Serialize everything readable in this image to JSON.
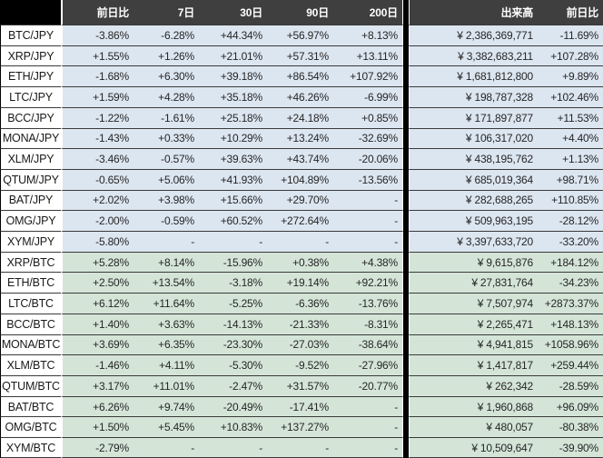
{
  "colors": {
    "header_bg": "#3f3f3f",
    "corner_and_separator_bg": "#000000",
    "jpy_row_bg": "#dce6f1",
    "btc_row_bg": "#d4e5d8",
    "text": "#262626",
    "header_text": "#ffffff"
  },
  "chart_data": {
    "type": "table",
    "title": "",
    "columns": [
      "",
      "前日比",
      "7日",
      "30日",
      "90日",
      "200日",
      "出来高",
      "前日比"
    ],
    "group_note": "rows 1-11 are /JPY pairs (blue rows), rows 12-21 are /BTC pairs (green rows)",
    "rows": [
      [
        "BTC/JPY",
        "-3.86%",
        "-6.28%",
        "+44.34%",
        "+56.97%",
        "+8.13%",
        "¥ 2,386,369,771",
        "-11.69%"
      ],
      [
        "XRP/JPY",
        "+1.55%",
        "+1.26%",
        "+21.01%",
        "+57.31%",
        "+13.11%",
        "¥ 3,382,683,211",
        "+107.28%"
      ],
      [
        "ETH/JPY",
        "-1.68%",
        "+6.30%",
        "+39.18%",
        "+86.54%",
        "+107.92%",
        "¥ 1,681,812,800",
        "+9.89%"
      ],
      [
        "LTC/JPY",
        "+1.59%",
        "+4.28%",
        "+35.18%",
        "+46.26%",
        "-6.99%",
        "¥ 198,787,328",
        "+102.46%"
      ],
      [
        "BCC/JPY",
        "-1.22%",
        "-1.61%",
        "+25.18%",
        "+24.18%",
        "+0.85%",
        "¥ 171,897,877",
        "+11.53%"
      ],
      [
        "MONA/JPY",
        "-1.43%",
        "+0.33%",
        "+10.29%",
        "+13.24%",
        "-32.69%",
        "¥ 106,317,020",
        "+4.40%"
      ],
      [
        "XLM/JPY",
        "-3.46%",
        "-0.57%",
        "+39.63%",
        "+43.74%",
        "-20.06%",
        "¥ 438,195,762",
        "+1.13%"
      ],
      [
        "QTUM/JPY",
        "-0.65%",
        "+5.06%",
        "+41.93%",
        "+104.89%",
        "-13.56%",
        "¥ 685,019,364",
        "+98.71%"
      ],
      [
        "BAT/JPY",
        "+2.02%",
        "+3.98%",
        "+15.66%",
        "+29.70%",
        "-",
        "¥ 282,688,265",
        "+110.85%"
      ],
      [
        "OMG/JPY",
        "-2.00%",
        "-0.59%",
        "+60.52%",
        "+272.64%",
        "-",
        "¥ 509,963,195",
        "-28.12%"
      ],
      [
        "XYM/JPY",
        "-5.80%",
        "-",
        "-",
        "-",
        "-",
        "¥ 3,397,633,720",
        "-33.20%"
      ],
      [
        "XRP/BTC",
        "+5.28%",
        "+8.14%",
        "-15.96%",
        "+0.38%",
        "+4.38%",
        "¥ 9,615,876",
        "+184.12%"
      ],
      [
        "ETH/BTC",
        "+2.50%",
        "+13.54%",
        "-3.18%",
        "+19.14%",
        "+92.21%",
        "¥ 27,831,764",
        "-34.23%"
      ],
      [
        "LTC/BTC",
        "+6.12%",
        "+11.64%",
        "-5.25%",
        "-6.36%",
        "-13.76%",
        "¥ 7,507,974",
        "+2873.37%"
      ],
      [
        "BCC/BTC",
        "+1.40%",
        "+3.63%",
        "-14.13%",
        "-21.33%",
        "-8.31%",
        "¥ 2,265,471",
        "+148.13%"
      ],
      [
        "MONA/BTC",
        "+3.69%",
        "+6.35%",
        "-23.30%",
        "-27.03%",
        "-38.64%",
        "¥ 4,941,815",
        "+1058.96%"
      ],
      [
        "XLM/BTC",
        "-1.46%",
        "+4.11%",
        "-5.30%",
        "-9.52%",
        "-27.96%",
        "¥ 1,417,817",
        "+259.44%"
      ],
      [
        "QTUM/BTC",
        "+3.17%",
        "+11.01%",
        "-2.47%",
        "+31.57%",
        "-20.77%",
        "¥ 262,342",
        "-28.59%"
      ],
      [
        "BAT/BTC",
        "+6.26%",
        "+9.74%",
        "-20.49%",
        "-17.41%",
        "-",
        "¥ 1,960,868",
        "+96.09%"
      ],
      [
        "OMG/BTC",
        "+1.50%",
        "+5.45%",
        "+10.83%",
        "+137.27%",
        "-",
        "¥ 480,057",
        "-80.38%"
      ],
      [
        "XYM/BTC",
        "-2.79%",
        "-",
        "-",
        "-",
        "-",
        "¥ 10,509,647",
        "-39.90%"
      ]
    ]
  }
}
